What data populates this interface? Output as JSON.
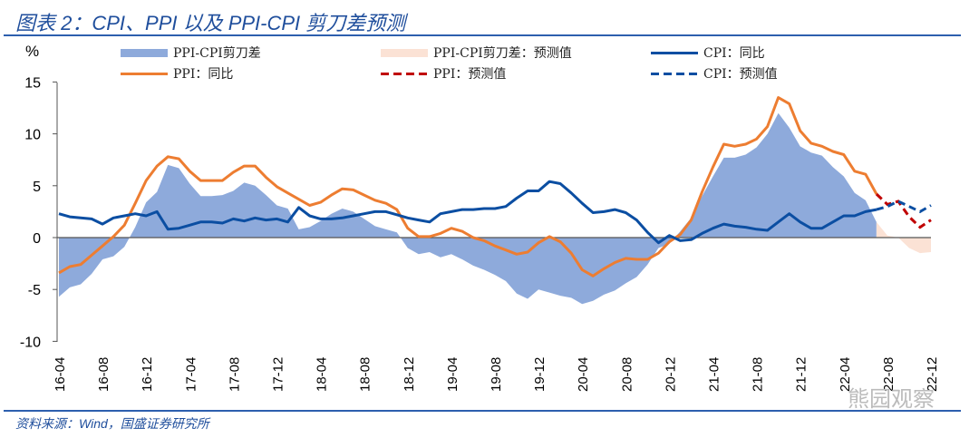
{
  "title": "图表 2：CPI、PPI 以及 PPI-CPI 剪刀差预测",
  "source": "资料来源：Wind，国盛证券研究所",
  "watermark": "熊园观察",
  "colors": {
    "spread": "#8eaadb",
    "spread_forecast": "#fbe2d5",
    "ppi": "#ed7d31",
    "ppi_forecast": "#c00000",
    "cpi": "#0b4ea2",
    "cpi_forecast": "#0b4ea2"
  },
  "chart_data": {
    "type": "line",
    "title": "CPI、PPI 以及 PPI-CPI 剪刀差预测",
    "ylabel": "%",
    "ylim": [
      -10,
      15
    ],
    "yticks": [
      "15",
      "10",
      "5",
      "0",
      "-5",
      "-10"
    ],
    "ytick_values": [
      15,
      10,
      5,
      0,
      -5,
      -10
    ],
    "x_start": "2016-04",
    "x_end": "2022-12",
    "forecast_start_index": 75,
    "xtick_labels": [
      "16-04",
      "16-08",
      "16-12",
      "17-04",
      "17-08",
      "17-12",
      "18-04",
      "18-08",
      "18-12",
      "19-04",
      "19-08",
      "19-12",
      "20-04",
      "20-08",
      "20-12",
      "21-04",
      "21-08",
      "21-12",
      "22-04",
      "22-08",
      "22-12"
    ],
    "legend": [
      "PPI-CPI剪刀差",
      "PPI-CPI剪刀差：预测值",
      "CPI：同比",
      "PPI：同比",
      "PPI：预测值",
      "CPI：预测值"
    ],
    "legend_position": "top",
    "series": [
      {
        "name": "CPI：同比",
        "values": [
          2.3,
          2.0,
          1.9,
          1.8,
          1.3,
          1.9,
          2.1,
          2.3,
          2.1,
          2.5,
          0.8,
          0.9,
          1.2,
          1.5,
          1.5,
          1.4,
          1.8,
          1.6,
          1.9,
          1.7,
          1.8,
          1.5,
          2.9,
          2.1,
          1.8,
          1.8,
          1.9,
          2.1,
          2.3,
          2.5,
          2.5,
          2.2,
          1.9,
          1.7,
          1.5,
          2.3,
          2.5,
          2.7,
          2.7,
          2.8,
          2.8,
          3.0,
          3.8,
          4.5,
          4.5,
          5.4,
          5.2,
          4.3,
          3.3,
          2.4,
          2.5,
          2.7,
          2.4,
          1.7,
          0.5,
          -0.5,
          0.2,
          -0.3,
          -0.2,
          0.4,
          0.9,
          1.3,
          1.1,
          1.0,
          0.8,
          0.7,
          1.5,
          2.3,
          1.5,
          0.9,
          0.9,
          1.5,
          2.1,
          2.1,
          2.5,
          2.7
        ]
      },
      {
        "name": "PPI：同比",
        "values": [
          -3.4,
          -2.8,
          -2.6,
          -1.7,
          -0.8,
          0.1,
          1.2,
          3.3,
          5.5,
          6.9,
          7.8,
          7.6,
          6.4,
          5.5,
          5.5,
          5.5,
          6.3,
          6.9,
          6.9,
          5.8,
          4.9,
          4.3,
          3.7,
          3.1,
          3.4,
          4.1,
          4.7,
          4.6,
          4.1,
          3.6,
          3.3,
          2.7,
          0.9,
          0.1,
          0.1,
          0.4,
          0.9,
          0.6,
          0.0,
          -0.3,
          -0.8,
          -1.2,
          -1.6,
          -1.4,
          -0.5,
          0.1,
          -0.4,
          -1.5,
          -3.1,
          -3.7,
          -3.0,
          -2.4,
          -2.0,
          -2.1,
          -2.1,
          -1.5,
          -0.4,
          0.3,
          1.7,
          4.4,
          6.8,
          9.0,
          8.8,
          9.0,
          9.5,
          10.7,
          13.5,
          12.9,
          10.3,
          9.1,
          8.8,
          8.3,
          8.0,
          6.4,
          6.1,
          4.2
        ]
      },
      {
        "name": "CPI：预测值",
        "values": [
          2.7,
          3.0,
          3.5,
          3.0,
          2.5,
          3.1
        ]
      },
      {
        "name": "PPI：预测值",
        "values": [
          4.2,
          3.2,
          3.5,
          2.0,
          1.0,
          1.7
        ]
      }
    ]
  }
}
